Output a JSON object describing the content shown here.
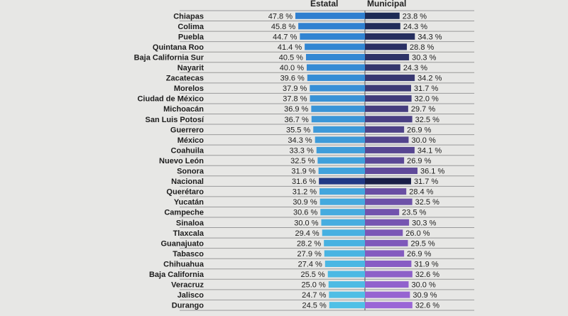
{
  "chart_data": {
    "type": "bar",
    "orientation": "horizontal",
    "layout": "diverging",
    "series_labels": {
      "left": "Estatal",
      "right": "Municipal"
    },
    "categories": [
      "Chiapas",
      "Colima",
      "Puebla",
      "Quintana Roo",
      "Baja California Sur",
      "Nayarit",
      "Zacatecas",
      "Morelos",
      "Ciudad de México",
      "Michoacán",
      "San Luis Potosí",
      "Guerrero",
      "México",
      "Coahuila",
      "Nuevo León",
      "Sonora",
      "Nacional",
      "Querétaro",
      "Yucatán",
      "Campeche",
      "Sinaloa",
      "Tlaxcala",
      "Guanajuato",
      "Tabasco",
      "Chihuahua",
      "Baja California",
      "Veracruz",
      "Jalisco",
      "Durango"
    ],
    "series": [
      {
        "name": "Estatal",
        "values": [
          47.8,
          45.8,
          44.7,
          41.4,
          40.5,
          40.0,
          39.6,
          37.9,
          37.8,
          36.9,
          36.7,
          35.5,
          34.3,
          33.3,
          32.5,
          31.9,
          31.6,
          31.2,
          30.9,
          30.6,
          30.0,
          29.4,
          28.2,
          27.9,
          27.4,
          25.5,
          25.0,
          24.7,
          24.5
        ],
        "labels": [
          "47.8 %",
          "45.8 %",
          "44.7 %",
          "41.4 %",
          "40.5 %",
          "40.0 %",
          "39.6 %",
          "37.9 %",
          "37.8 %",
          "36.9 %",
          "36.7 %",
          "35.5 %",
          "34.3 %",
          "33.3 %",
          "32.5 %",
          "31.9 %",
          "31.6 %",
          "31.2 %",
          "30.9 %",
          "30.6 %",
          "30.0 %",
          "29.4 %",
          "28.2 %",
          "27.9 %",
          "27.4 %",
          "25.5 %",
          "25.0 %",
          "24.7 %",
          "24.5 %"
        ]
      },
      {
        "name": "Municipal",
        "values": [
          23.8,
          24.3,
          34.3,
          28.8,
          30.3,
          24.3,
          34.2,
          31.7,
          32.0,
          29.7,
          32.5,
          26.9,
          30.0,
          34.1,
          26.9,
          36.1,
          31.7,
          28.4,
          32.5,
          23.5,
          30.3,
          26.0,
          29.5,
          26.9,
          31.9,
          32.6,
          30.0,
          30.9,
          32.6
        ],
        "labels": [
          "23.8 %",
          "24.3 %",
          "34.3 %",
          "28.8 %",
          "30.3 %",
          "24.3 %",
          "34.2 %",
          "31.7 %",
          "32.0 %",
          "29.7 %",
          "32.5 %",
          "26.9 %",
          "30.0 %",
          "34.1 %",
          "26.9 %",
          "36.1 %",
          "31.7 %",
          "28.4 %",
          "32.5 %",
          "23.5 %",
          "30.3 %",
          "26.0 %",
          "29.5 %",
          "26.9 %",
          "31.9 %",
          "32.6 %",
          "30.0 %",
          "30.9 %",
          "32.6 %"
        ]
      }
    ],
    "highlight_category": "Nacional",
    "colors": {
      "left_top": "#2f7fd0",
      "left_bottom": "#4fc0e6",
      "right_top": "#1c2a55",
      "right_bottom": "#9a66d6",
      "highlight_left": "#213a86",
      "highlight_right": "#1a1f48",
      "grid": "#9a9a9a"
    }
  }
}
